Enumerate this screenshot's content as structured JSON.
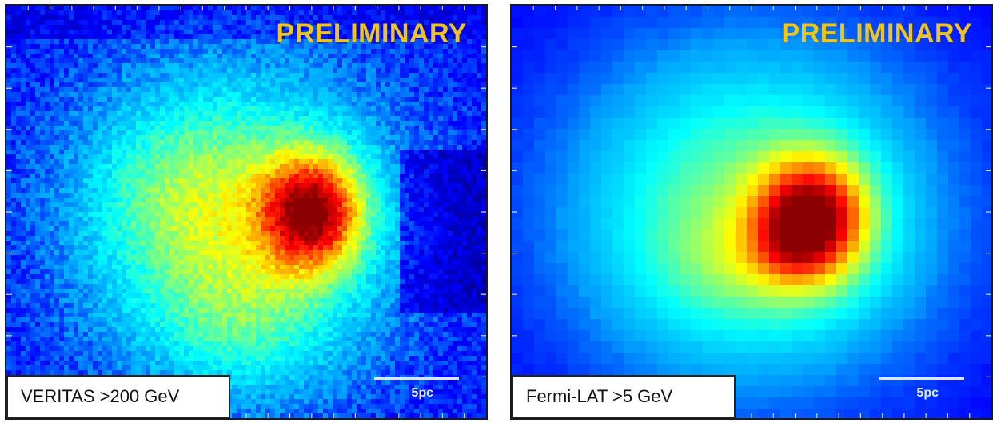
{
  "chart_data": [
    {
      "type": "heatmap",
      "instrument_label": "VERITAS >200 GeV",
      "watermark": "PRELIMINARY",
      "scale_bar_label": "5pc",
      "colormap": [
        "#00008b",
        "#0000ff",
        "#00a0ff",
        "#00ffff",
        "#7fff7f",
        "#ffff00",
        "#ff7f00",
        "#ff0000",
        "#8b0000"
      ],
      "peak": {
        "x": 0.64,
        "y": 0.5,
        "value": 1.0
      },
      "grid": "none"
    },
    {
      "type": "heatmap",
      "instrument_label": "Fermi-LAT >5 GeV",
      "watermark": "PRELIMINARY",
      "scale_bar_label": "5pc",
      "colormap": [
        "#00008b",
        "#0000ff",
        "#00a0ff",
        "#00ffff",
        "#7fff7f",
        "#ffff00",
        "#ff7f00",
        "#ff0000",
        "#8b0000"
      ],
      "peak": {
        "x": 0.63,
        "y": 0.51,
        "value": 1.0
      },
      "grid": "none"
    }
  ]
}
